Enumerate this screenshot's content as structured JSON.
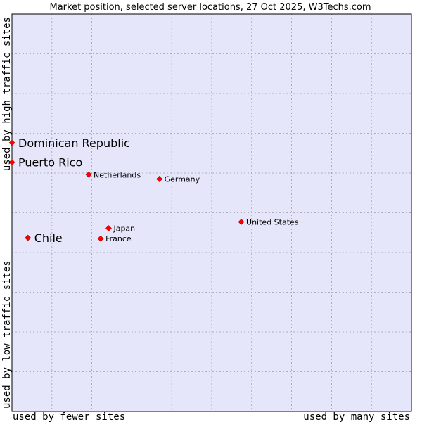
{
  "chart_data": {
    "type": "scatter",
    "title": "Market position, selected server locations, 27 Oct 2025, W3Techs.com",
    "x_axis": {
      "low_label": "used by fewer sites",
      "high_label": "used by many sites",
      "range": [
        0,
        100
      ],
      "grid": true
    },
    "y_axis": {
      "low_label": "used by low traffic sites",
      "high_label": "used by high traffic sites",
      "range": [
        0,
        100
      ],
      "grid": true
    },
    "colors": {
      "plot_background": "#e6e6fa",
      "grid": "#9a9ab0",
      "marker": "#ff0000",
      "frame": "#000000"
    },
    "points": [
      {
        "name": "Dominican Republic",
        "x": 0.0,
        "y": 67.6,
        "highlight": true
      },
      {
        "name": "Puerto Rico",
        "x": 0.0,
        "y": 62.7,
        "highlight": true
      },
      {
        "name": "Netherlands",
        "x": 19.2,
        "y": 59.6,
        "highlight": false
      },
      {
        "name": "Germany",
        "x": 36.9,
        "y": 58.5,
        "highlight": false
      },
      {
        "name": "United States",
        "x": 57.4,
        "y": 47.7,
        "highlight": false
      },
      {
        "name": "Japan",
        "x": 24.2,
        "y": 46.1,
        "highlight": false
      },
      {
        "name": "France",
        "x": 22.2,
        "y": 43.5,
        "highlight": false
      },
      {
        "name": "Chile",
        "x": 4.0,
        "y": 43.7,
        "highlight": true
      }
    ]
  }
}
